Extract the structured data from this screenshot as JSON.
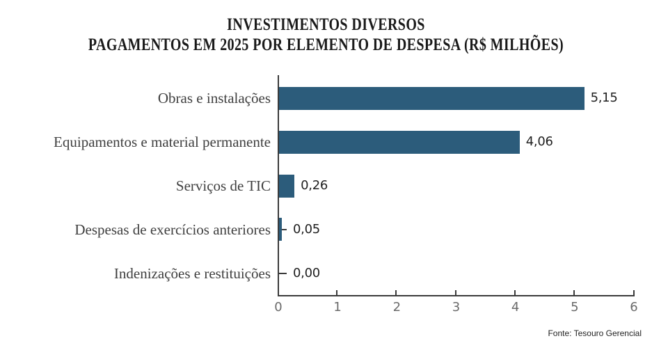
{
  "title": {
    "line1": "INVESTIMENTOS DIVERSOS",
    "line2": "PAGAMENTOS EM 2025 POR ELEMENTO DE DESPESA (R$ MILHÕES)"
  },
  "source": "Fonte: Tesouro Gerencial",
  "colors": {
    "bar": "#2c5c7b",
    "axis": "#3a3a3a",
    "x_tick_label": "#6a6a6a",
    "category_label": "#3f3f3f",
    "value_label": "#1f1f1f",
    "title": "#1a1a1a",
    "background": "#ffffff"
  },
  "chart_data": {
    "type": "bar",
    "orientation": "horizontal",
    "title": "INVESTIMENTOS DIVERSOS",
    "subtitle": "PAGAMENTOS EM 2025 POR ELEMENTO DE DESPESA (R$ MILHÕES)",
    "categories": [
      "Obras e instalações",
      "Equipamentos e material permanente",
      "Serviços de TIC",
      "Despesas de exercícios anteriores",
      "Indenizações e restituições"
    ],
    "values": [
      5.15,
      4.06,
      0.26,
      0.05,
      0.0
    ],
    "value_labels": [
      "5,15",
      "4,06",
      "0,26",
      "0,05",
      "0,00"
    ],
    "xlabel": "",
    "ylabel": "",
    "xlim": [
      0,
      6
    ],
    "xticks": [
      "0",
      "1",
      "2",
      "3",
      "4",
      "5",
      "6"
    ],
    "grid": false,
    "legend": null,
    "source": "Fonte: Tesouro Gerencial"
  }
}
